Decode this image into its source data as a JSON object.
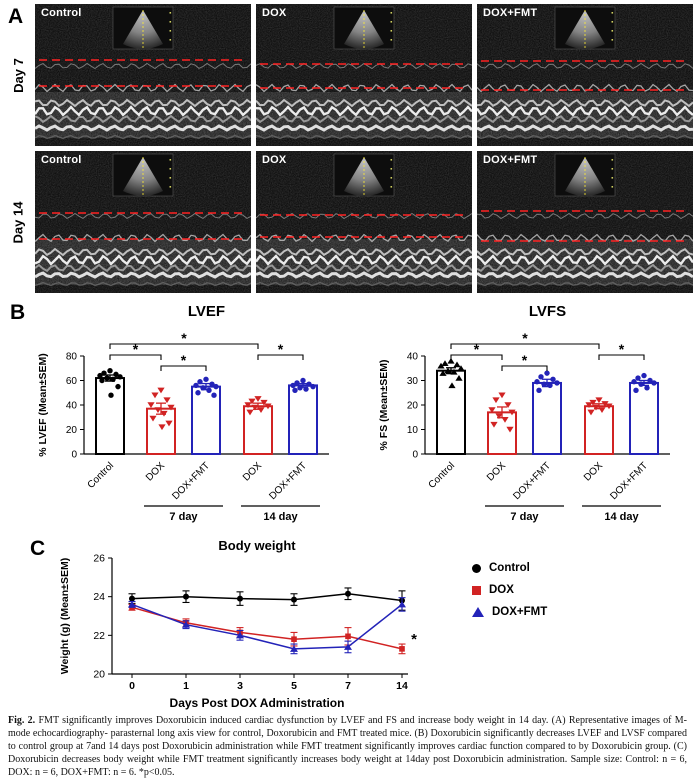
{
  "figure": {
    "caption_label": "Fig. 2.",
    "caption_text": "FMT significantly improves Doxorubicin induced cardiac dysfunction by LVEF and FS and increase body weight in 14 day. (A) Representative images of M-mode echocardiography- parasternal long axis view for control, Doxorubicin and FMT treated mice. (B) Doxorubicin significantly decreases LVEF and LVSF compared to control group at 7and 14 days post Doxorubicin administration while FMT treatment significantly improves cardiac function compared to by Doxorubicin group. (C) Doxorubicin decreases body weight while FMT treatment significantly increases body weight at 14day post Doxorubicin administration. Sample size: Control: n = 6, DOX: n = 6, DOX+FMT: n = 6. *p<0.05."
  },
  "colors": {
    "control": "#000000",
    "dox": "#d12323",
    "dox_fmt": "#2323b8",
    "echo_dashed_line": "#ff2222",
    "echo_cursor": "#ffee33"
  },
  "panel_a": {
    "label": "A",
    "row_labels": [
      "Day 7",
      "Day 14"
    ],
    "column_labels": [
      "Control",
      "DOX",
      "DOX+FMT"
    ]
  },
  "panel_b": {
    "label": "B"
  },
  "panel_c": {
    "label": "C"
  },
  "chart_data": [
    {
      "id": "lvef",
      "type": "bar",
      "title": "LVEF",
      "ylabel": "% LVEF (Mean±SEM)",
      "ylim": [
        0,
        80
      ],
      "yticks": [
        0,
        20,
        40,
        60,
        80
      ],
      "categories": [
        "Control",
        "DOX",
        "DOX+FMT",
        "DOX",
        "DOX+FMT"
      ],
      "values": [
        62,
        37,
        55,
        39,
        56
      ],
      "errors": [
        2.5,
        4.5,
        2.5,
        2.5,
        1.5
      ],
      "bar_colors": [
        "control",
        "dox",
        "dox_fmt",
        "dox",
        "dox_fmt"
      ],
      "markers": [
        "circle",
        "triangle-down",
        "circle",
        "triangle-down",
        "circle"
      ],
      "points": [
        [
          68,
          66,
          65,
          64,
          63,
          62,
          61,
          60,
          55,
          48
        ],
        [
          52,
          48,
          44,
          40,
          38,
          36,
          33,
          29,
          25,
          22
        ],
        [
          61,
          59,
          57,
          56,
          55,
          54,
          52,
          50,
          48
        ],
        [
          45,
          43,
          42,
          40,
          39,
          38,
          36,
          34
        ],
        [
          60,
          58,
          57,
          56,
          55,
          54,
          53,
          52
        ]
      ],
      "group_labels": [
        {
          "label": "7 day",
          "from": 1,
          "to": 2
        },
        {
          "label": "14 day",
          "from": 3,
          "to": 4
        }
      ],
      "significance": [
        {
          "from": 0,
          "to": 1,
          "label": "*",
          "level": 1
        },
        {
          "from": 1,
          "to": 2,
          "label": "*",
          "level": 0
        },
        {
          "from": 0,
          "to": 3,
          "label": "*",
          "level": 2
        },
        {
          "from": 3,
          "to": 4,
          "label": "*",
          "level": 1
        }
      ]
    },
    {
      "id": "lvfs",
      "type": "bar",
      "title": "LVFS",
      "ylabel": "% FS (Mean±SEM)",
      "ylim": [
        0,
        40
      ],
      "yticks": [
        0,
        10,
        20,
        30,
        40
      ],
      "categories": [
        "Control",
        "DOX",
        "DOX+FMT",
        "DOX",
        "DOX+FMT"
      ],
      "values": [
        34,
        17,
        29,
        19.5,
        29
      ],
      "errors": [
        1.2,
        2.2,
        1.5,
        1,
        1
      ],
      "bar_colors": [
        "control",
        "dox",
        "dox_fmt",
        "dox",
        "dox_fmt"
      ],
      "markers": [
        "triangle-up",
        "triangle-down",
        "circle",
        "triangle-down",
        "circle"
      ],
      "points": [
        [
          38,
          37,
          36.5,
          36,
          35,
          34,
          33.5,
          33,
          31,
          28
        ],
        [
          24,
          22,
          20,
          18,
          17,
          15.5,
          14,
          12,
          10
        ],
        [
          33,
          31.5,
          30.5,
          29.5,
          29,
          28.5,
          28,
          26
        ],
        [
          22,
          21,
          20.5,
          20,
          19.5,
          19,
          18,
          17
        ],
        [
          32,
          31,
          30,
          29.5,
          29,
          28.5,
          27,
          26
        ]
      ],
      "group_labels": [
        {
          "label": "7 day",
          "from": 1,
          "to": 2
        },
        {
          "label": "14 day",
          "from": 3,
          "to": 4
        }
      ],
      "significance": [
        {
          "from": 0,
          "to": 1,
          "label": "*",
          "level": 1
        },
        {
          "from": 1,
          "to": 2,
          "label": "*",
          "level": 0
        },
        {
          "from": 0,
          "to": 3,
          "label": "*",
          "level": 2
        },
        {
          "from": 3,
          "to": 4,
          "label": "*",
          "level": 1
        }
      ]
    },
    {
      "id": "body_weight",
      "type": "line",
      "title": "Body weight",
      "ylabel": "Weight (g) (Mean±SEM)",
      "xlabel": "Days Post DOX Administration",
      "ylim": [
        20,
        26
      ],
      "yticks": [
        20,
        22,
        24,
        26
      ],
      "x": [
        0,
        1,
        3,
        5,
        7,
        14
      ],
      "series": [
        {
          "name": "Control",
          "color": "control",
          "marker": "circle",
          "values": [
            23.9,
            24.0,
            23.9,
            23.85,
            24.15,
            23.8
          ],
          "errors": [
            0.25,
            0.3,
            0.35,
            0.3,
            0.3,
            0.5
          ]
        },
        {
          "name": "DOX",
          "color": "dox",
          "marker": "square",
          "values": [
            23.45,
            22.65,
            22.15,
            21.8,
            21.95,
            21.3
          ],
          "errors": [
            0.15,
            0.2,
            0.25,
            0.35,
            0.45,
            0.25
          ]
        },
        {
          "name": "DOX+FMT",
          "color": "dox_fmt",
          "marker": "triangle-up",
          "values": [
            23.6,
            22.55,
            22.0,
            21.3,
            21.4,
            23.6
          ],
          "errors": [
            0.15,
            0.2,
            0.25,
            0.25,
            0.3,
            0.35
          ]
        }
      ],
      "annotation": {
        "label": "*",
        "x": 14,
        "y": 21.75
      }
    }
  ]
}
